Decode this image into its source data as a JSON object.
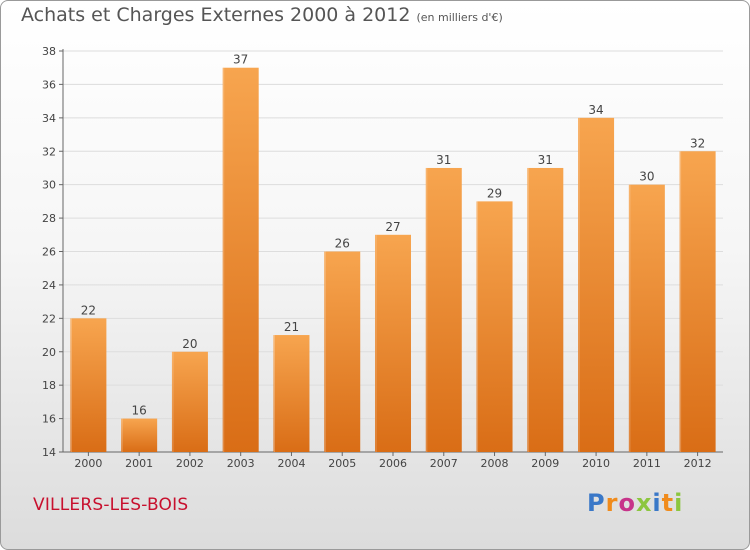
{
  "header": {
    "title": "Achats et Charges Externes 2000 à 2012",
    "unit": "(en milliers d'€)"
  },
  "footer": {
    "commune": "VILLERS-LES-BOIS",
    "logo": "Proxiti"
  },
  "colors": {
    "bar_light": "#f7a54f",
    "bar_dark": "#d96d16",
    "axis": "#666666",
    "grid": "#dddddd",
    "commune": "#c8102e",
    "logo_letters": [
      "#3a78c8",
      "#f08b1c",
      "#c7348a",
      "#8cc63f",
      "#3a78c8",
      "#f08b1c",
      "#8cc63f"
    ]
  },
  "chart_data": {
    "type": "bar",
    "title": "Achats et Charges Externes 2000 à 2012",
    "categories": [
      "2000",
      "2001",
      "2002",
      "2003",
      "2004",
      "2005",
      "2006",
      "2007",
      "2008",
      "2009",
      "2010",
      "2011",
      "2012"
    ],
    "values": [
      22,
      16,
      20,
      37,
      21,
      26,
      27,
      31,
      29,
      31,
      34,
      30,
      32
    ],
    "ylim": [
      14,
      38
    ],
    "yticks": [
      14,
      16,
      18,
      20,
      22,
      24,
      26,
      28,
      30,
      32,
      34,
      36,
      38
    ],
    "xlabel": "",
    "ylabel": "",
    "grid": true,
    "data_labels": true
  }
}
